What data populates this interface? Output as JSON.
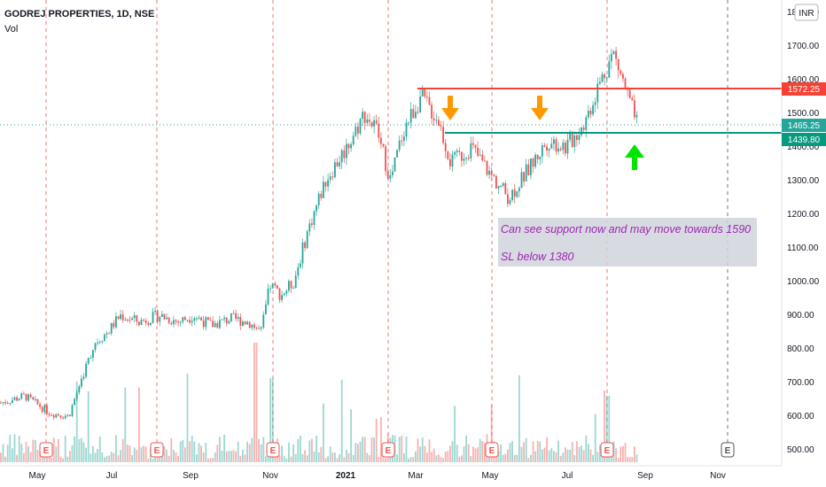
{
  "header": {
    "symbol_title": "GODREJ PROPERTIES, 1D, NSE",
    "volume_label": "Vol",
    "currency_badge": "INR"
  },
  "colors": {
    "up": "#26a69a",
    "down": "#ef5350",
    "resistance": "#f44336",
    "support": "#089981",
    "arrow_orange": "#ff9800",
    "arrow_green": "#00e600",
    "note_bg": "#d1d4dc",
    "note_text": "#9c27b0",
    "event_red": "#ef5350",
    "grid_dash": "#ef5350"
  },
  "annotations": {
    "note_line1": "Can see support now and may move towards 1590",
    "note_line2": "SL below 1380",
    "down_arrows": [
      "orange-down-arrow",
      "orange-down-arrow"
    ],
    "up_arrow": "green-up-arrow"
  },
  "price_tags": [
    {
      "label": "1572.25",
      "value": 1572.25,
      "kind": "resistance"
    },
    {
      "label": "1465.25",
      "value": 1465.25,
      "kind": "last"
    },
    {
      "label": "1439.80",
      "value": 1439.8,
      "kind": "support"
    }
  ],
  "chart_data": {
    "type": "line",
    "title": "GODREJ PROPERTIES, 1D, NSE",
    "xlabel": "",
    "ylabel": "",
    "ylim": [
      480,
      1800
    ],
    "y_ticks": [
      "1800.00",
      "1700.00",
      "1600.00",
      "1500.00",
      "1400.00",
      "1300.00",
      "1200.00",
      "1100.00",
      "1000.00",
      "900.00",
      "800.00",
      "700.00",
      "600.00",
      "500.00"
    ],
    "x_ticks": [
      "May",
      "Jul",
      "Sep",
      "Nov",
      "2021",
      "Mar",
      "May",
      "Jul",
      "Sep",
      "Nov"
    ],
    "x_ticks_bold": [
      "2021"
    ],
    "series": [
      {
        "values_approx_close": [
          {
            "date": "2020-04-01",
            "value": 640
          },
          {
            "date": "2020-04-20",
            "value": 660
          },
          {
            "date": "2020-05-10",
            "value": 610
          },
          {
            "date": "2020-05-25",
            "value": 600
          },
          {
            "date": "2020-06-05",
            "value": 720
          },
          {
            "date": "2020-06-15",
            "value": 820
          },
          {
            "date": "2020-06-25",
            "value": 850
          },
          {
            "date": "2020-07-05",
            "value": 900
          },
          {
            "date": "2020-07-20",
            "value": 880
          },
          {
            "date": "2020-08-05",
            "value": 900
          },
          {
            "date": "2020-08-20",
            "value": 880
          },
          {
            "date": "2020-09-01",
            "value": 900
          },
          {
            "date": "2020-09-15",
            "value": 870
          },
          {
            "date": "2020-10-01",
            "value": 890
          },
          {
            "date": "2020-10-15",
            "value": 880
          },
          {
            "date": "2020-10-25",
            "value": 850
          },
          {
            "date": "2020-11-01",
            "value": 990
          },
          {
            "date": "2020-11-10",
            "value": 960
          },
          {
            "date": "2020-11-20",
            "value": 1000
          },
          {
            "date": "2020-12-01",
            "value": 1150
          },
          {
            "date": "2020-12-15",
            "value": 1300
          },
          {
            "date": "2021-01-01",
            "value": 1400
          },
          {
            "date": "2021-01-15",
            "value": 1500
          },
          {
            "date": "2021-01-25",
            "value": 1450
          },
          {
            "date": "2021-02-05",
            "value": 1300
          },
          {
            "date": "2021-02-15",
            "value": 1450
          },
          {
            "date": "2021-03-01",
            "value": 1550
          },
          {
            "date": "2021-03-15",
            "value": 1480
          },
          {
            "date": "2021-03-25",
            "value": 1350
          },
          {
            "date": "2021-04-10",
            "value": 1400
          },
          {
            "date": "2021-04-25",
            "value": 1320
          },
          {
            "date": "2021-05-10",
            "value": 1250
          },
          {
            "date": "2021-05-25",
            "value": 1330
          },
          {
            "date": "2021-06-10",
            "value": 1420
          },
          {
            "date": "2021-06-25",
            "value": 1400
          },
          {
            "date": "2021-07-10",
            "value": 1480
          },
          {
            "date": "2021-07-20",
            "value": 1580
          },
          {
            "date": "2021-08-01",
            "value": 1680
          },
          {
            "date": "2021-08-10",
            "value": 1580
          },
          {
            "date": "2021-08-20",
            "value": 1465
          }
        ]
      }
    ],
    "horizontal_levels": [
      {
        "label": "1572.25",
        "value": 1572.25
      },
      {
        "label": "1439.80",
        "value": 1439.8
      }
    ],
    "event_markers": [
      "E",
      "E",
      "E",
      "E",
      "E",
      "E",
      "E",
      "E"
    ],
    "grid": false
  }
}
